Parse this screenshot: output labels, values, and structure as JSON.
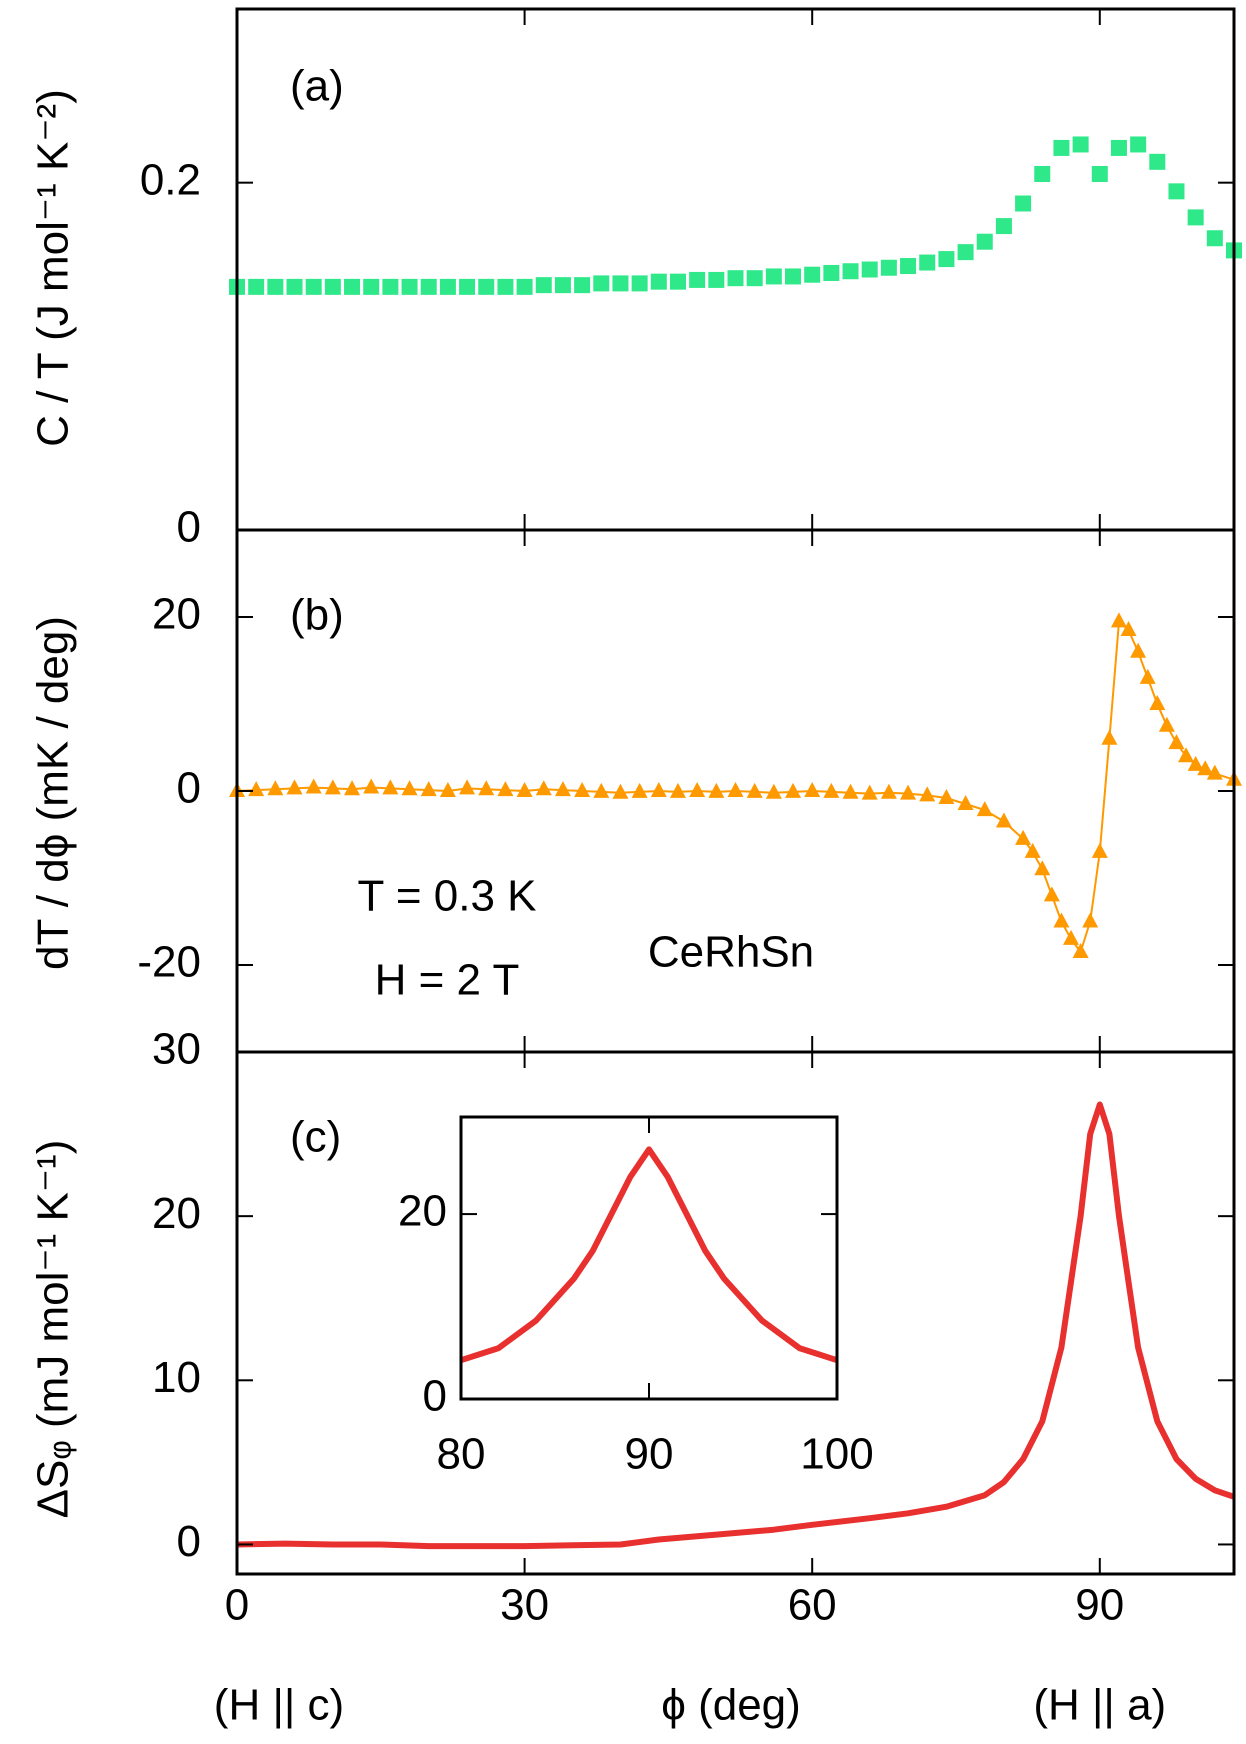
{
  "chart_data": [
    {
      "type": "scatter",
      "label": "(a)",
      "ylabel": "C / T (J mol⁻¹ K⁻²)",
      "xlim": [
        0,
        104
      ],
      "xticks": [
        0,
        30,
        60,
        90
      ],
      "ylim": [
        0,
        0.3
      ],
      "yticks": [
        0,
        0.2
      ],
      "color": "#2fe88a",
      "marker": "square",
      "x": [
        0,
        2,
        4,
        6,
        8,
        10,
        12,
        14,
        16,
        18,
        20,
        22,
        24,
        26,
        28,
        30,
        32,
        34,
        36,
        38,
        40,
        42,
        44,
        46,
        48,
        50,
        52,
        54,
        56,
        58,
        60,
        62,
        64,
        66,
        68,
        70,
        72,
        74,
        76,
        78,
        80,
        82,
        84,
        86,
        88,
        90,
        92,
        94,
        96,
        98,
        100,
        102,
        104
      ],
      "values": [
        0.14,
        0.14,
        0.14,
        0.14,
        0.14,
        0.14,
        0.14,
        0.14,
        0.14,
        0.14,
        0.14,
        0.14,
        0.14,
        0.14,
        0.14,
        0.14,
        0.141,
        0.141,
        0.141,
        0.142,
        0.142,
        0.142,
        0.143,
        0.143,
        0.144,
        0.144,
        0.145,
        0.145,
        0.146,
        0.146,
        0.147,
        0.148,
        0.149,
        0.15,
        0.151,
        0.152,
        0.154,
        0.156,
        0.16,
        0.166,
        0.175,
        0.188,
        0.205,
        0.22,
        0.222,
        0.205,
        0.22,
        0.222,
        0.212,
        0.195,
        0.18,
        0.168,
        0.161
      ]
    },
    {
      "type": "line",
      "label": "(b)",
      "ylabel": "dT / dϕ (mK / deg)",
      "xlim": [
        0,
        104
      ],
      "xticks": [
        0,
        30,
        60,
        90
      ],
      "ylim": [
        -30,
        30
      ],
      "yticks": [
        -20,
        0,
        20
      ],
      "color": "#ff9900",
      "marker": "triangle",
      "annotations": [
        "T = 0.3 K",
        "H = 2 T",
        "CeRhSn"
      ],
      "x": [
        0,
        2,
        4,
        6,
        8,
        10,
        12,
        14,
        16,
        18,
        20,
        22,
        24,
        26,
        28,
        30,
        32,
        34,
        36,
        38,
        40,
        42,
        44,
        46,
        48,
        50,
        52,
        54,
        56,
        58,
        60,
        62,
        64,
        66,
        68,
        70,
        72,
        74,
        76,
        78,
        80,
        82,
        83,
        84,
        85,
        86,
        87,
        88,
        89,
        90,
        91,
        92,
        93,
        94,
        95,
        96,
        97,
        98,
        99,
        100,
        101,
        102,
        104
      ],
      "values": [
        0,
        0.1,
        0.2,
        0.3,
        0.4,
        0.3,
        0.2,
        0.4,
        0.3,
        0.2,
        0.1,
        0,
        0.3,
        0.2,
        0.1,
        0,
        0.2,
        0.1,
        0,
        -0.1,
        -0.2,
        -0.1,
        0,
        -0.1,
        0,
        -0.1,
        0,
        -0.1,
        -0.2,
        -0.1,
        0,
        -0.1,
        -0.2,
        -0.3,
        -0.2,
        -0.3,
        -0.5,
        -0.8,
        -1.5,
        -2.2,
        -3.5,
        -5.5,
        -7,
        -9,
        -12,
        -15,
        -17,
        -18.5,
        -15,
        -7,
        6,
        19.5,
        18.5,
        16,
        13,
        10,
        7.5,
        5.5,
        4,
        3,
        2.5,
        2,
        1.3
      ]
    },
    {
      "type": "line",
      "label": "(c)",
      "ylabel": "ΔSᵩ (mJ mol⁻¹ K⁻¹)",
      "xlim": [
        0,
        104
      ],
      "xticks": [
        0,
        30,
        60,
        90
      ],
      "xlabel": "ϕ (deg)",
      "xlabel_left": "(H || c)",
      "xlabel_right": "(H || a)",
      "ylim": [
        -1.8,
        30
      ],
      "yticks": [
        0,
        10,
        20,
        30
      ],
      "color": "#e8302f",
      "x": [
        0,
        5,
        10,
        15,
        20,
        25,
        30,
        35,
        40,
        44,
        50,
        56,
        60,
        66,
        70,
        74,
        78,
        80,
        82,
        84,
        86,
        87,
        88,
        89,
        90,
        91,
        92,
        93,
        94,
        96,
        98,
        100,
        102,
        104
      ],
      "values": [
        0,
        0.05,
        0,
        0,
        -0.1,
        -0.1,
        -0.1,
        -0.05,
        0,
        0.3,
        0.6,
        0.9,
        1.2,
        1.6,
        1.9,
        2.3,
        3,
        3.8,
        5.2,
        7.5,
        12,
        16,
        20,
        25,
        26.8,
        25,
        20,
        16,
        12,
        7.5,
        5.2,
        4,
        3.3,
        2.9
      ]
    },
    {
      "type": "line",
      "inset": true,
      "xlim": [
        80,
        100
      ],
      "xticks": [
        80,
        90,
        100
      ],
      "ylim": [
        0,
        30.5
      ],
      "yticks": [
        0,
        20
      ],
      "color": "#e8302f",
      "x": [
        80,
        82,
        84,
        86,
        87,
        88,
        89,
        90,
        91,
        92,
        93,
        94,
        96,
        98,
        100
      ],
      "values": [
        4.2,
        5.5,
        8.5,
        13,
        16,
        20,
        24,
        27,
        24,
        20,
        16,
        13,
        8.5,
        5.5,
        4.2
      ]
    }
  ]
}
